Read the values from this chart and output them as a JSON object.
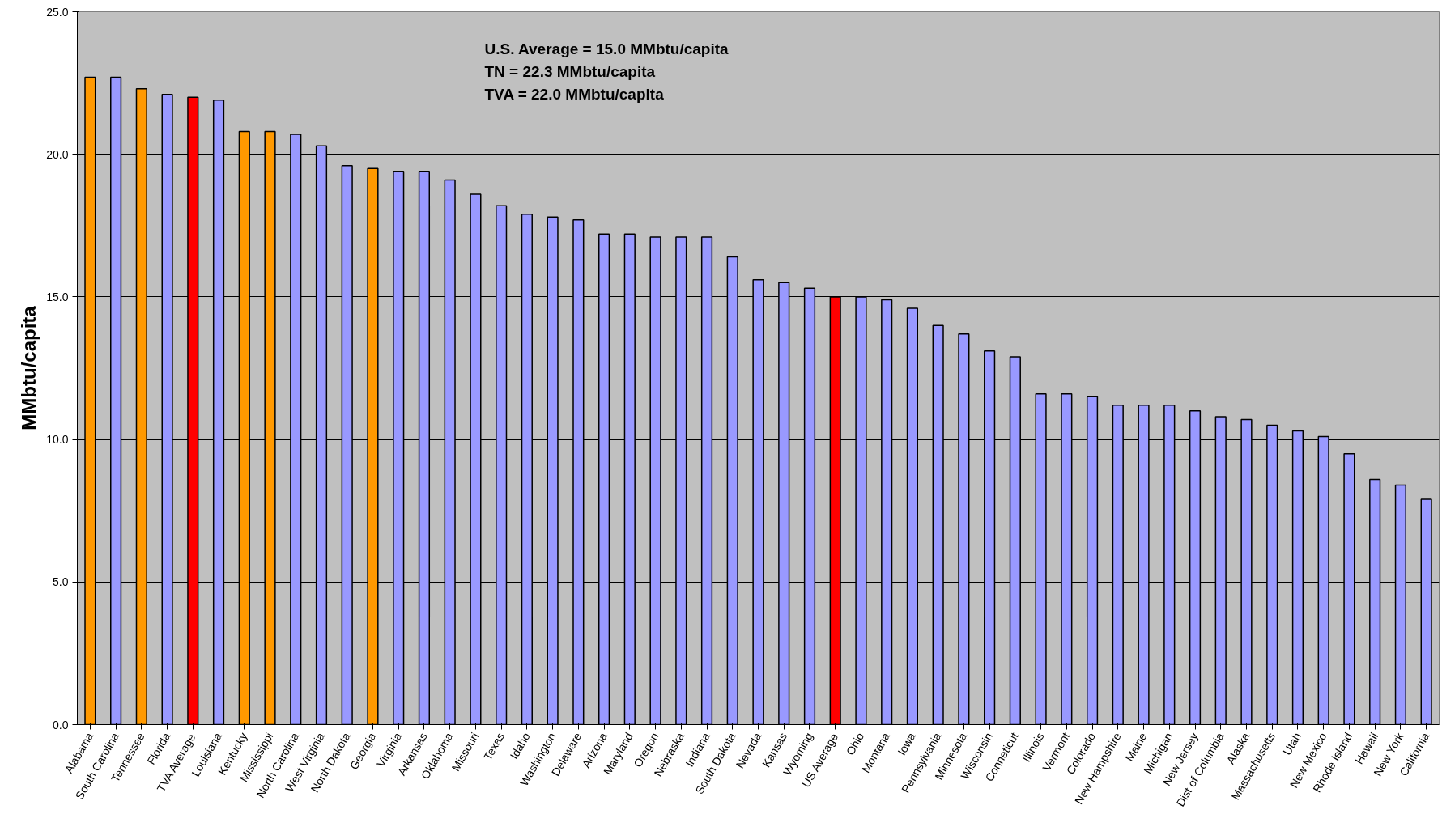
{
  "chart_data": {
    "type": "bar",
    "ylabel": "MMbtu/capita",
    "annotations": [
      "U.S. Average = 15.0 MMbtu/capita",
      "TN = 22.3 MMbtu/capita",
      "TVA = 22.0 MMbtu/capita"
    ],
    "categories": [
      "Alabama",
      "South Carolina",
      "Tennessee",
      "Florida",
      "TVA Average",
      "Louisiana",
      "Kentucky",
      "Mississippi",
      "North Carolina",
      "West Virginia",
      "North Dakota",
      "Georgia",
      "Virginia",
      "Arkansas",
      "Oklahoma",
      "Missouri",
      "Texas",
      "Idaho",
      "Washington",
      "Delaware",
      "Arizona",
      "Maryland",
      "Oregon",
      "Nebraska",
      "Indiana",
      "South Dakota",
      "Nevada",
      "Kansas",
      "Wyoming",
      "US Average",
      "Ohio",
      "Montana",
      "Iowa",
      "Pennsylvania",
      "Minnesota",
      "Wisconsin",
      "Conneticut",
      "Illinois",
      "Vermont",
      "Colorado",
      "New Hampshire",
      "Maine",
      "Michigan",
      "New Jersey",
      "Dist of Columbia",
      "Alaska",
      "Massachusetts",
      "Utah",
      "New Mexico",
      "Rhode Island",
      "Hawaii",
      "New York",
      "California"
    ],
    "values": [
      22.7,
      22.7,
      22.3,
      22.1,
      22.0,
      21.9,
      20.8,
      20.8,
      20.7,
      20.3,
      19.6,
      19.5,
      19.4,
      19.4,
      19.1,
      18.6,
      18.2,
      17.9,
      17.8,
      17.7,
      17.2,
      17.2,
      17.1,
      17.1,
      17.1,
      16.4,
      15.6,
      15.5,
      15.3,
      15.0,
      15.0,
      14.9,
      14.6,
      14.0,
      13.7,
      13.1,
      12.9,
      11.6,
      11.6,
      11.5,
      11.2,
      11.2,
      11.2,
      11.0,
      10.8,
      10.7,
      10.5,
      10.3,
      10.1,
      9.5,
      8.6,
      8.4,
      7.9
    ],
    "colors": [
      "#ff9900",
      "#9999ff",
      "#ff9900",
      "#9999ff",
      "#ff0000",
      "#9999ff",
      "#ff9900",
      "#ff9900",
      "#9999ff",
      "#9999ff",
      "#9999ff",
      "#ff9900",
      "#9999ff",
      "#9999ff",
      "#9999ff",
      "#9999ff",
      "#9999ff",
      "#9999ff",
      "#9999ff",
      "#9999ff",
      "#9999ff",
      "#9999ff",
      "#9999ff",
      "#9999ff",
      "#9999ff",
      "#9999ff",
      "#9999ff",
      "#9999ff",
      "#9999ff",
      "#ff0000",
      "#9999ff",
      "#9999ff",
      "#9999ff",
      "#9999ff",
      "#9999ff",
      "#9999ff",
      "#9999ff",
      "#9999ff",
      "#9999ff",
      "#9999ff",
      "#9999ff",
      "#9999ff",
      "#9999ff",
      "#9999ff",
      "#9999ff",
      "#9999ff",
      "#9999ff",
      "#9999ff",
      "#9999ff",
      "#9999ff",
      "#9999ff",
      "#9999ff",
      "#9999ff"
    ],
    "ylim": [
      0,
      25
    ],
    "yticks": [
      {
        "value": 0,
        "label": "0.0"
      },
      {
        "value": 5,
        "label": "5.0"
      },
      {
        "value": 10,
        "label": "10.0"
      },
      {
        "value": 15,
        "label": "15.0"
      },
      {
        "value": 20,
        "label": "20.0"
      },
      {
        "value": 25,
        "label": "25.0"
      }
    ],
    "grid": "y"
  }
}
